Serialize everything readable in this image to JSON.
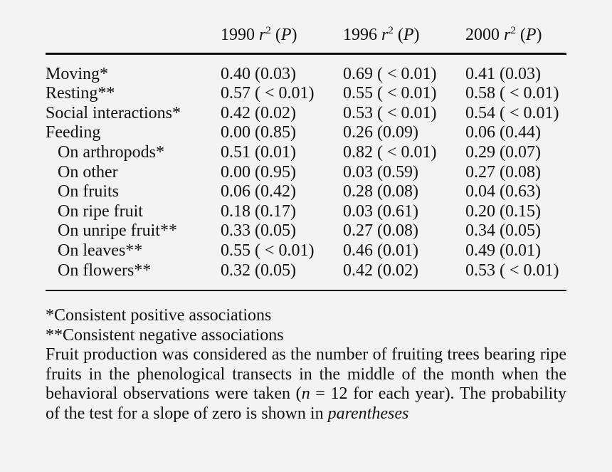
{
  "table": {
    "columns": [
      {
        "year": "1990",
        "stat": "r",
        "exp": "2",
        "prob_open": "(",
        "prob": "P",
        "prob_close": ")"
      },
      {
        "year": "1996",
        "stat": "r",
        "exp": "2",
        "prob_open": "(",
        "prob": "P",
        "prob_close": ")"
      },
      {
        "year": "2000",
        "stat": "r",
        "exp": "2",
        "prob_open": "(",
        "prob": "P",
        "prob_close": ")"
      }
    ],
    "rows": [
      {
        "label": "Moving*",
        "values": [
          "0.40 (0.03)",
          "0.69 ( < 0.01)",
          "0.41 (0.03)"
        ]
      },
      {
        "label": "Resting**",
        "values": [
          "0.57 ( < 0.01)",
          "0.55 ( < 0.01)",
          "0.58 ( < 0.01)"
        ]
      },
      {
        "label": "Social interactions*",
        "values": [
          "0.42 (0.02)",
          "0.53 ( < 0.01)",
          "0.54 ( < 0.01)"
        ]
      },
      {
        "label": "Feeding",
        "values": [
          "0.00 (0.85)",
          "0.26 (0.09)",
          "0.06 (0.44)"
        ]
      },
      {
        "label": "On arthropods*",
        "values": [
          "0.51 (0.01)",
          "0.82 ( < 0.01)",
          "0.29 (0.07)"
        ]
      },
      {
        "label": "On other",
        "values": [
          "0.00 (0.95)",
          "0.03 (0.59)",
          "0.27 (0.08)"
        ]
      },
      {
        "label": "On fruits",
        "values": [
          "0.06 (0.42)",
          "0.28 (0.08)",
          "0.04 (0.63)"
        ]
      },
      {
        "label": "On ripe fruit",
        "values": [
          "0.18 (0.17)",
          "0.03 (0.61)",
          "0.20 (0.15)"
        ]
      },
      {
        "label": "On unripe fruit**",
        "values": [
          "0.33 (0.05)",
          "0.27 (0.08)",
          "0.34 (0.05)"
        ]
      },
      {
        "label": "On leaves**",
        "values": [
          "0.55 ( < 0.01)",
          "0.46 (0.01)",
          "0.49 (0.01)"
        ]
      },
      {
        "label": "On flowers**",
        "values": [
          "0.32 (0.05)",
          "0.42 (0.02)",
          "0.53 ( < 0.01)"
        ]
      }
    ]
  },
  "notes": {
    "positive": "*Consistent positive associations",
    "negative": "**Consistent negative associations",
    "desc_part1": "Fruit production was considered as the number of fruiting trees bearing ripe fruits in the phenological transects in the middle of the month when the behavioral observations were taken (",
    "desc_n": "n",
    "desc_eq": " = 12 for each year). The probability of the test for a slope of zero is shown in ",
    "desc_italic": "parentheses"
  }
}
